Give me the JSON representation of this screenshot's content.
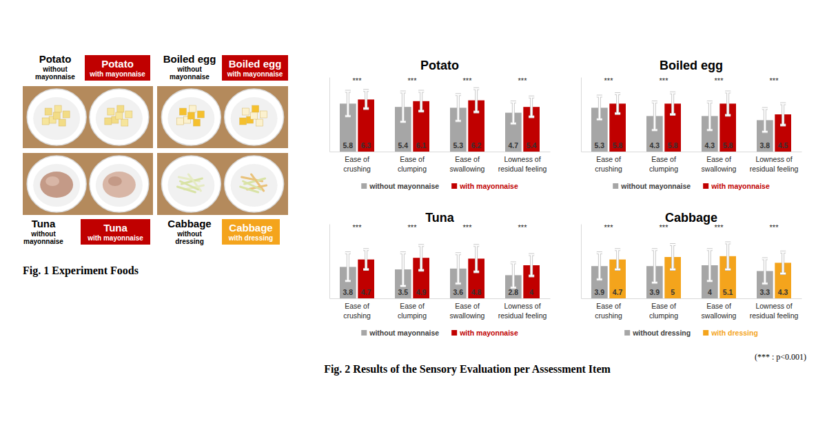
{
  "figure1": {
    "caption": "Fig. 1 Experiment Foods",
    "foods": [
      {
        "name": "Potato",
        "without": "without mayonnaise",
        "with": "with mayonnaise",
        "color": "#c00000"
      },
      {
        "name": "Boiled egg",
        "without": "without mayonnaise",
        "with": "with mayonnaise",
        "color": "#c00000"
      },
      {
        "name": "Tuna",
        "without": "without mayonnaise",
        "with": "with mayonnaise",
        "color": "#c00000"
      },
      {
        "name": "Cabbage",
        "without": "without dressing",
        "with": "with dressing",
        "color": "#f4a41c"
      }
    ]
  },
  "chart_data": [
    {
      "type": "bar",
      "title": "Potato",
      "categories": [
        "Ease of crushing",
        "Ease of clumping",
        "Ease of swallowing",
        "Lowness of residual feeling"
      ],
      "series": [
        {
          "name": "without mayonnaise",
          "color": "#a6a6a6",
          "values": [
            5.8,
            5.4,
            5.3,
            4.7
          ],
          "errors": [
            1.5,
            1.8,
            1.6,
            1.3
          ]
        },
        {
          "name": "with mayonnaise",
          "color": "#c00000",
          "values": [
            6.3,
            6.1,
            6.2,
            5.4
          ],
          "errors": [
            1.1,
            1.2,
            1.4,
            1.2
          ]
        }
      ],
      "significance": [
        "***",
        "***",
        "***",
        "***"
      ],
      "ylim": [
        0,
        9
      ],
      "grid": false,
      "data_labels": true,
      "tick_labels": "x",
      "legend": "bottom"
    },
    {
      "type": "bar",
      "title": "Boiled egg",
      "categories": [
        "Ease of crushing",
        "Ease of clumping",
        "Ease of swallowing",
        "Lowness of residual feeling"
      ],
      "series": [
        {
          "name": "without mayonnaise",
          "color": "#a6a6a6",
          "values": [
            5.3,
            4.3,
            4.3,
            3.8
          ],
          "errors": [
            1.4,
            1.7,
            1.7,
            1.4
          ]
        },
        {
          "name": "with mayonnaise",
          "color": "#c00000",
          "values": [
            5.8,
            5.8,
            5.8,
            4.5
          ],
          "errors": [
            1.2,
            1.3,
            1.4,
            1.3
          ]
        }
      ],
      "significance": [
        "***",
        "***",
        "***",
        "***"
      ],
      "ylim": [
        0,
        9
      ],
      "grid": false,
      "data_labels": true,
      "tick_labels": "x",
      "legend": "bottom"
    },
    {
      "type": "bar",
      "title": "Tuna",
      "categories": [
        "Ease of crushing",
        "Ease of clumping",
        "Ease of swallowing",
        "Lowness of residual feeling"
      ],
      "series": [
        {
          "name": "without mayonnaise",
          "color": "#a6a6a6",
          "values": [
            3.8,
            3.5,
            3.6,
            2.8
          ],
          "errors": [
            1.7,
            2.0,
            1.8,
            1.5
          ]
        },
        {
          "name": "with mayonnaise",
          "color": "#c00000",
          "values": [
            4.7,
            4.9,
            4.8,
            4.0
          ],
          "errors": [
            1.2,
            1.5,
            1.6,
            1.3
          ]
        }
      ],
      "significance": [
        "***",
        "***",
        "***",
        "***"
      ],
      "ylim": [
        0,
        9
      ],
      "grid": false,
      "data_labels": true,
      "tick_labels": "x",
      "legend": "bottom"
    },
    {
      "type": "bar",
      "title": "Cabbage",
      "categories": [
        "Ease of crushing",
        "Ease of clumping",
        "Ease of swallowing",
        "Lowness of residual feeling"
      ],
      "series": [
        {
          "name": "without dressing",
          "color": "#a6a6a6",
          "values": [
            3.9,
            3.9,
            4.0,
            3.3
          ],
          "errors": [
            1.6,
            2.0,
            1.9,
            1.5
          ]
        },
        {
          "name": "with dressing",
          "color": "#f4a41c",
          "values": [
            4.7,
            5.0,
            5.1,
            4.3
          ],
          "errors": [
            1.2,
            1.5,
            1.6,
            1.3
          ]
        }
      ],
      "significance": [
        "***",
        "***",
        "***",
        "***"
      ],
      "ylim": [
        0,
        9
      ],
      "grid": false,
      "data_labels": true,
      "tick_labels": "x",
      "legend": "bottom"
    }
  ],
  "figure2": {
    "caption": "Fig. 2 Results of the Sensory Evaluation per Assessment Item",
    "note": "(*** : p<0.001)"
  }
}
